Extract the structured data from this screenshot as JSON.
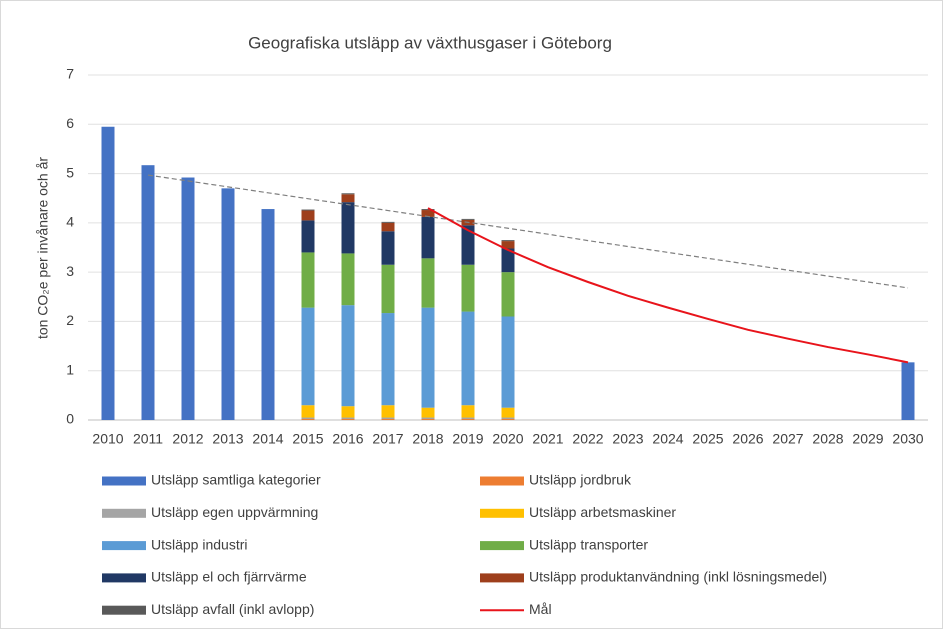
{
  "chart_data": {
    "type": "bar",
    "title": "Geografiska utsläpp av växthusgaser i Göteborg",
    "y_label": "ton CO₂e per invånare och år",
    "categories": [
      "2010",
      "2011",
      "2012",
      "2013",
      "2014",
      "2015",
      "2016",
      "2017",
      "2018",
      "2019",
      "2020",
      "2021",
      "2022",
      "2023",
      "2024",
      "2025",
      "2026",
      "2027",
      "2028",
      "2029",
      "2030"
    ],
    "ylim": [
      0,
      7
    ],
    "yticks": [
      0,
      1,
      2,
      3,
      4,
      5,
      6,
      7
    ],
    "grid": true,
    "stacked": true,
    "series": [
      {
        "name": "Utsläpp samtliga kategorier",
        "color": "#4472c4",
        "values": [
          5.95,
          5.17,
          4.92,
          4.7,
          4.28,
          null,
          null,
          null,
          null,
          null,
          null,
          null,
          null,
          null,
          null,
          null,
          null,
          null,
          null,
          null,
          1.17
        ]
      },
      {
        "name": "Utsläpp jordbruk",
        "color": "#ed7d31",
        "values": [
          null,
          null,
          null,
          null,
          null,
          0.02,
          0.02,
          0.02,
          0.02,
          0.02,
          0.02,
          null,
          null,
          null,
          null,
          null,
          null,
          null,
          null,
          null,
          null
        ]
      },
      {
        "name": "Utsläpp egen uppvärmning",
        "color": "#a5a5a5",
        "values": [
          null,
          null,
          null,
          null,
          null,
          0.03,
          0.03,
          0.03,
          0.03,
          0.03,
          0.03,
          null,
          null,
          null,
          null,
          null,
          null,
          null,
          null,
          null,
          null
        ]
      },
      {
        "name": "Utsläpp arbetsmaskiner",
        "color": "#ffc000",
        "values": [
          null,
          null,
          null,
          null,
          null,
          0.25,
          0.23,
          0.25,
          0.2,
          0.25,
          0.2,
          null,
          null,
          null,
          null,
          null,
          null,
          null,
          null,
          null,
          null
        ]
      },
      {
        "name": "Utsläpp industri",
        "color": "#5b9bd5",
        "values": [
          null,
          null,
          null,
          null,
          null,
          1.98,
          2.05,
          1.87,
          2.03,
          1.9,
          1.85,
          null,
          null,
          null,
          null,
          null,
          null,
          null,
          null,
          null,
          null
        ]
      },
      {
        "name": "Utsläpp transporter",
        "color": "#70ad47",
        "values": [
          null,
          null,
          null,
          null,
          null,
          1.12,
          1.05,
          0.98,
          1.0,
          0.95,
          0.9,
          null,
          null,
          null,
          null,
          null,
          null,
          null,
          null,
          null,
          null
        ]
      },
      {
        "name": "Utsläpp el och fjärrvärme",
        "color": "#203864",
        "values": [
          null,
          null,
          null,
          null,
          null,
          0.65,
          1.04,
          0.68,
          0.84,
          0.8,
          0.48,
          null,
          null,
          null,
          null,
          null,
          null,
          null,
          null,
          null,
          null
        ]
      },
      {
        "name": "Utsläpp produktanvändning (inkl lösningsmedel)",
        "color": "#9e3f1c",
        "values": [
          null,
          null,
          null,
          null,
          null,
          0.2,
          0.16,
          0.17,
          0.14,
          0.11,
          0.15,
          null,
          null,
          null,
          null,
          null,
          null,
          null,
          null,
          null,
          null
        ]
      },
      {
        "name": "Utsläpp avfall (inkl avlopp)",
        "color": "#595959",
        "values": [
          null,
          null,
          null,
          null,
          null,
          0.02,
          0.02,
          0.02,
          0.02,
          0.02,
          0.02,
          null,
          null,
          null,
          null,
          null,
          null,
          null,
          null,
          null,
          null
        ]
      },
      {
        "name": "Mål",
        "color": "#e8141b",
        "kind": "line",
        "values": [
          null,
          null,
          null,
          null,
          null,
          null,
          null,
          null,
          4.3,
          3.85,
          3.45,
          3.1,
          2.8,
          2.52,
          2.28,
          2.05,
          1.83,
          1.65,
          1.48,
          1.33,
          1.17
        ]
      }
    ],
    "trend": {
      "color": "#7f7f7f",
      "values": [
        null,
        4.97,
        4.85,
        4.73,
        4.61,
        4.49,
        4.37,
        4.25,
        4.13,
        4.01,
        3.89,
        3.77,
        3.64,
        3.52,
        3.4,
        3.28,
        3.16,
        3.04,
        2.92,
        2.8,
        2.68
      ]
    }
  }
}
